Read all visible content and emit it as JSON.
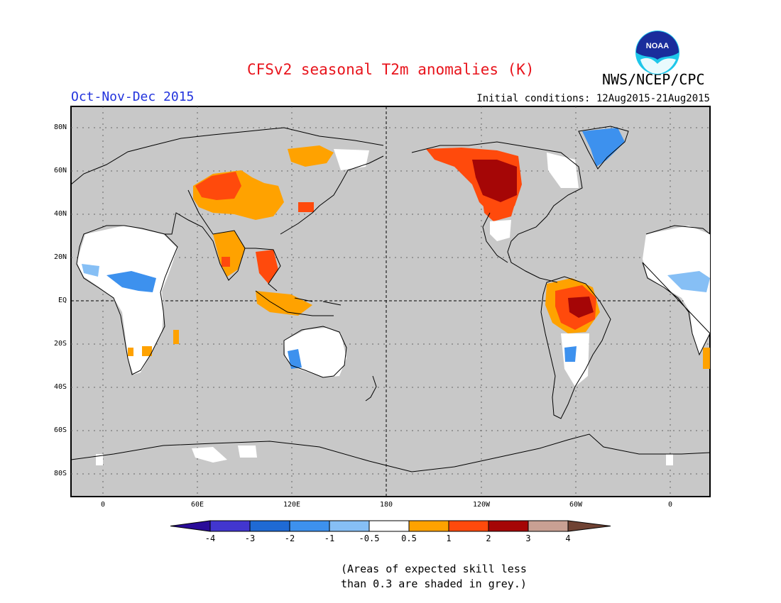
{
  "header": {
    "title": "CFSv2 seasonal T2m anomalies (K)",
    "agency": "NWS/NCEP/CPC",
    "season": "Oct-Nov-Dec 2015",
    "initial_conditions": "Initial conditions: 12Aug2015-21Aug2015",
    "logo_text": "NOAA"
  },
  "map": {
    "lat_labels": [
      "80N",
      "60N",
      "40N",
      "20N",
      "EQ",
      "20S",
      "40S",
      "60S",
      "80S"
    ],
    "lon_labels": [
      "0",
      "60E",
      "120E",
      "180",
      "120W",
      "60W",
      "0"
    ],
    "background_color": "#c8c8c8",
    "no_skill_note": "grey = skill < 0.3"
  },
  "colorbar": {
    "labels": [
      "-4",
      "-3",
      "-2",
      "-1",
      "-0.5",
      "0.5",
      "1",
      "2",
      "3",
      "4"
    ],
    "colors": [
      "#2a0c99",
      "#4236cf",
      "#1f6ad4",
      "#3d91ee",
      "#86bff5",
      "#ffffff",
      "#ffa200",
      "#ff4a0c",
      "#a50606",
      "#c9a093",
      "#6f4233"
    ]
  },
  "footnote": {
    "line1": "(Areas of expected skill less",
    "line2": "than 0.3 are shaded in grey.)"
  }
}
